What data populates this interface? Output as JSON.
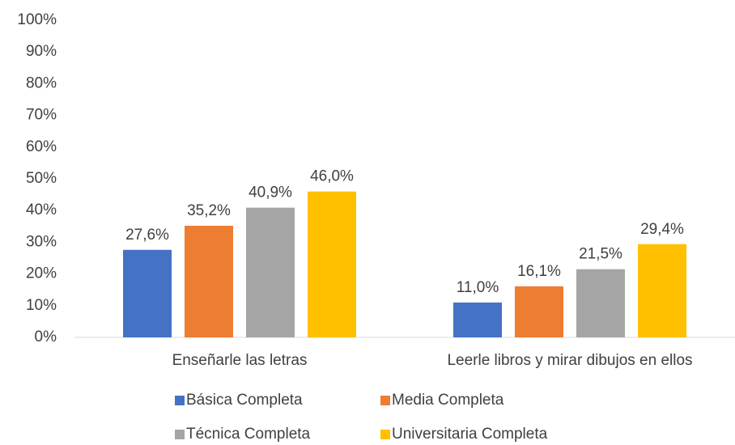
{
  "chart_data": {
    "type": "bar",
    "categories": [
      "Enseñarle las letras",
      "Leerle libros y mirar dibujos en ellos"
    ],
    "series": [
      {
        "name": "Básica Completa",
        "color": "#4472c4",
        "values": [
          27.6,
          11.0
        ],
        "value_labels": [
          "27,6%",
          "11,0%"
        ]
      },
      {
        "name": "Media Completa",
        "color": "#ed7d31",
        "values": [
          35.2,
          16.1
        ],
        "value_labels": [
          "35,2%",
          "16,1%"
        ]
      },
      {
        "name": "Técnica Completa",
        "color": "#a5a5a5",
        "values": [
          40.9,
          21.5
        ],
        "value_labels": [
          "40,9%",
          "21,5%"
        ]
      },
      {
        "name": "Universitaria Completa",
        "color": "#ffc000",
        "values": [
          46.0,
          29.4
        ],
        "value_labels": [
          "46,0%",
          "29,4%"
        ]
      }
    ],
    "ylim": [
      0,
      100
    ],
    "yticks": [
      {
        "value": 0,
        "label": "0%"
      },
      {
        "value": 10,
        "label": "10%"
      },
      {
        "value": 20,
        "label": "20%"
      },
      {
        "value": 30,
        "label": "30%"
      },
      {
        "value": 40,
        "label": "40%"
      },
      {
        "value": 50,
        "label": "50%"
      },
      {
        "value": 60,
        "label": "60%"
      },
      {
        "value": 70,
        "label": "70%"
      },
      {
        "value": 80,
        "label": "80%"
      },
      {
        "value": 90,
        "label": "90%"
      },
      {
        "value": 100,
        "label": "100%"
      }
    ],
    "grid": false
  }
}
